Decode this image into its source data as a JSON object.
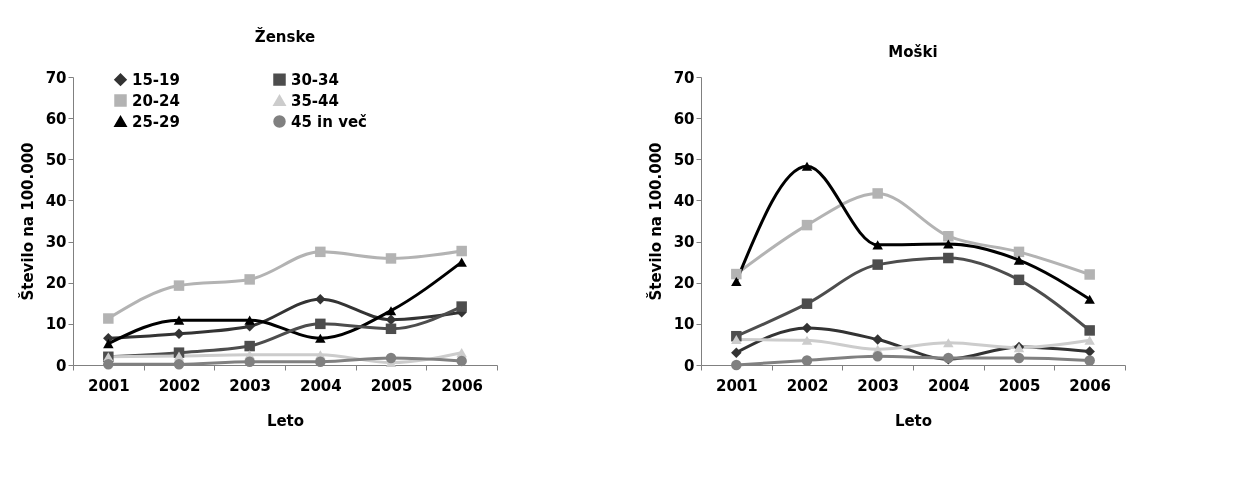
{
  "chart_data": [
    {
      "type": "line",
      "title": "Ženske",
      "xlabel": "Leto",
      "ylabel": "Število na 100.000",
      "categories": [
        "2001",
        "2002",
        "2003",
        "2004",
        "2005",
        "2006"
      ],
      "ylim": [
        0,
        70
      ],
      "yticks": [
        0,
        10,
        20,
        30,
        40,
        50,
        60,
        70
      ],
      "grid": false,
      "legend": "top",
      "series": [
        {
          "name": "15-19",
          "color": "#333333",
          "marker": "diamond",
          "values": [
            6.5,
            7.6,
            9.4,
            16,
            11,
            12.8
          ]
        },
        {
          "name": "20-24",
          "color": "#b3b3b3",
          "marker": "square",
          "values": [
            11.3,
            19.3,
            20.8,
            27.5,
            25.9,
            27.7
          ]
        },
        {
          "name": "25-29",
          "color": "#000000",
          "marker": "triangle",
          "values": [
            5.2,
            10.9,
            10.9,
            6.5,
            13.2,
            25
          ]
        },
        {
          "name": "30-34",
          "color": "#4d4d4d",
          "marker": "square",
          "values": [
            2,
            3,
            4.6,
            10,
            8.8,
            14.2
          ]
        },
        {
          "name": "35-44",
          "color": "#cccccc",
          "marker": "triangle",
          "values": [
            2,
            2.2,
            2.5,
            2.5,
            0.6,
            3
          ]
        },
        {
          "name": "45 in več",
          "color": "#808080",
          "marker": "circle",
          "values": [
            0.2,
            0.2,
            0.8,
            0.8,
            1.7,
            1
          ]
        }
      ]
    },
    {
      "type": "line",
      "title": "Moški",
      "xlabel": "Leto",
      "ylabel": "Število na 100.000",
      "categories": [
        "2001",
        "2002",
        "2003",
        "2004",
        "2005",
        "2006"
      ],
      "ylim": [
        0,
        70
      ],
      "yticks": [
        0,
        10,
        20,
        30,
        40,
        50,
        60,
        70
      ],
      "grid": false,
      "legend": false,
      "series": [
        {
          "color": "#333333",
          "marker": "diamond",
          "values": [
            3,
            9,
            6.2,
            1.4,
            4.4,
            3.3
          ]
        },
        {
          "color": "#b3b3b3",
          "marker": "square",
          "values": [
            22.1,
            34,
            41.7,
            31.3,
            27.5,
            22
          ]
        },
        {
          "color": "#000000",
          "marker": "triangle",
          "values": [
            20.3,
            48.3,
            29.2,
            29.4,
            25.5,
            16
          ]
        },
        {
          "color": "#4d4d4d",
          "marker": "square",
          "values": [
            7,
            14.9,
            24.4,
            26,
            20.7,
            8.4
          ]
        },
        {
          "color": "#cccccc",
          "marker": "triangle",
          "values": [
            6.2,
            6,
            3.8,
            5.4,
            4.2,
            6
          ]
        },
        {
          "color": "#808080",
          "marker": "circle",
          "values": [
            0,
            1.1,
            2.1,
            1.7,
            1.7,
            1.1
          ]
        }
      ]
    }
  ]
}
